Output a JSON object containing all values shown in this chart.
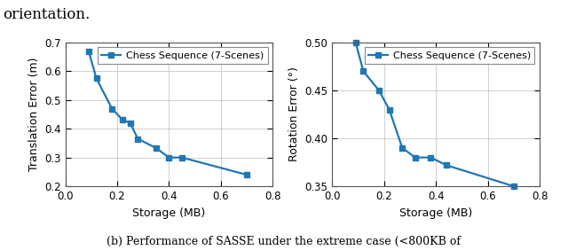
{
  "left": {
    "x": [
      0.09,
      0.12,
      0.18,
      0.22,
      0.25,
      0.28,
      0.35,
      0.4,
      0.45,
      0.7
    ],
    "y": [
      0.67,
      0.575,
      0.47,
      0.432,
      0.42,
      0.365,
      0.333,
      0.3,
      0.3,
      0.24
    ],
    "xlabel": "Storage (MB)",
    "ylabel": "Translation Error (m)",
    "legend": "Chess Sequence (7-Scenes)",
    "xlim": [
      0,
      0.8
    ],
    "ylim": [
      0.2,
      0.7
    ],
    "yticks": [
      0.2,
      0.3,
      0.4,
      0.5,
      0.6,
      0.7
    ],
    "xticks": [
      0,
      0.2,
      0.4,
      0.6,
      0.8
    ]
  },
  "right": {
    "x": [
      0.09,
      0.12,
      0.18,
      0.22,
      0.27,
      0.32,
      0.38,
      0.44,
      0.7
    ],
    "y": [
      0.5,
      0.47,
      0.45,
      0.43,
      0.39,
      0.38,
      0.38,
      0.372,
      0.35
    ],
    "xlabel": "Storage (MB)",
    "ylabel": "Rotation Error (°)",
    "legend": "Chess Sequence (7-Scenes)",
    "xlim": [
      0,
      0.8
    ],
    "ylim": [
      0.35,
      0.5
    ],
    "yticks": [
      0.35,
      0.4,
      0.45,
      0.5
    ],
    "xticks": [
      0,
      0.2,
      0.4,
      0.6,
      0.8
    ]
  },
  "line_color": "#1f77b4",
  "marker": "s",
  "markersize": 4.5,
  "linewidth": 1.6,
  "grid_color": "#b0b0b0",
  "caption": "(b) Performance of SASSE under the extreme case (<800KB of",
  "top_text": "orientation.",
  "fig_background": "#ffffff"
}
